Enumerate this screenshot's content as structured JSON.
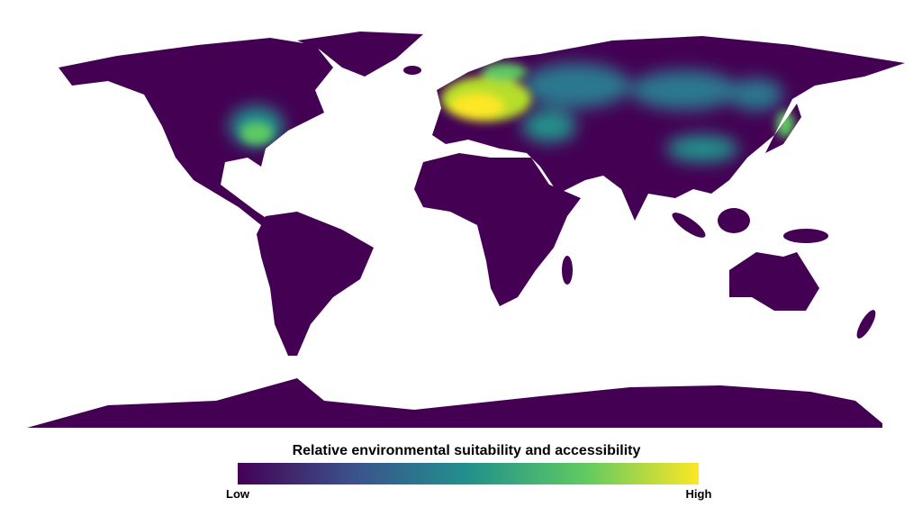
{
  "legend": {
    "title": "Relative environmental suitability and accessibility",
    "low_label": "Low",
    "high_label": "High",
    "colors": [
      "#440154",
      "#3b528b",
      "#21918c",
      "#5ec962",
      "#fde725"
    ]
  }
}
